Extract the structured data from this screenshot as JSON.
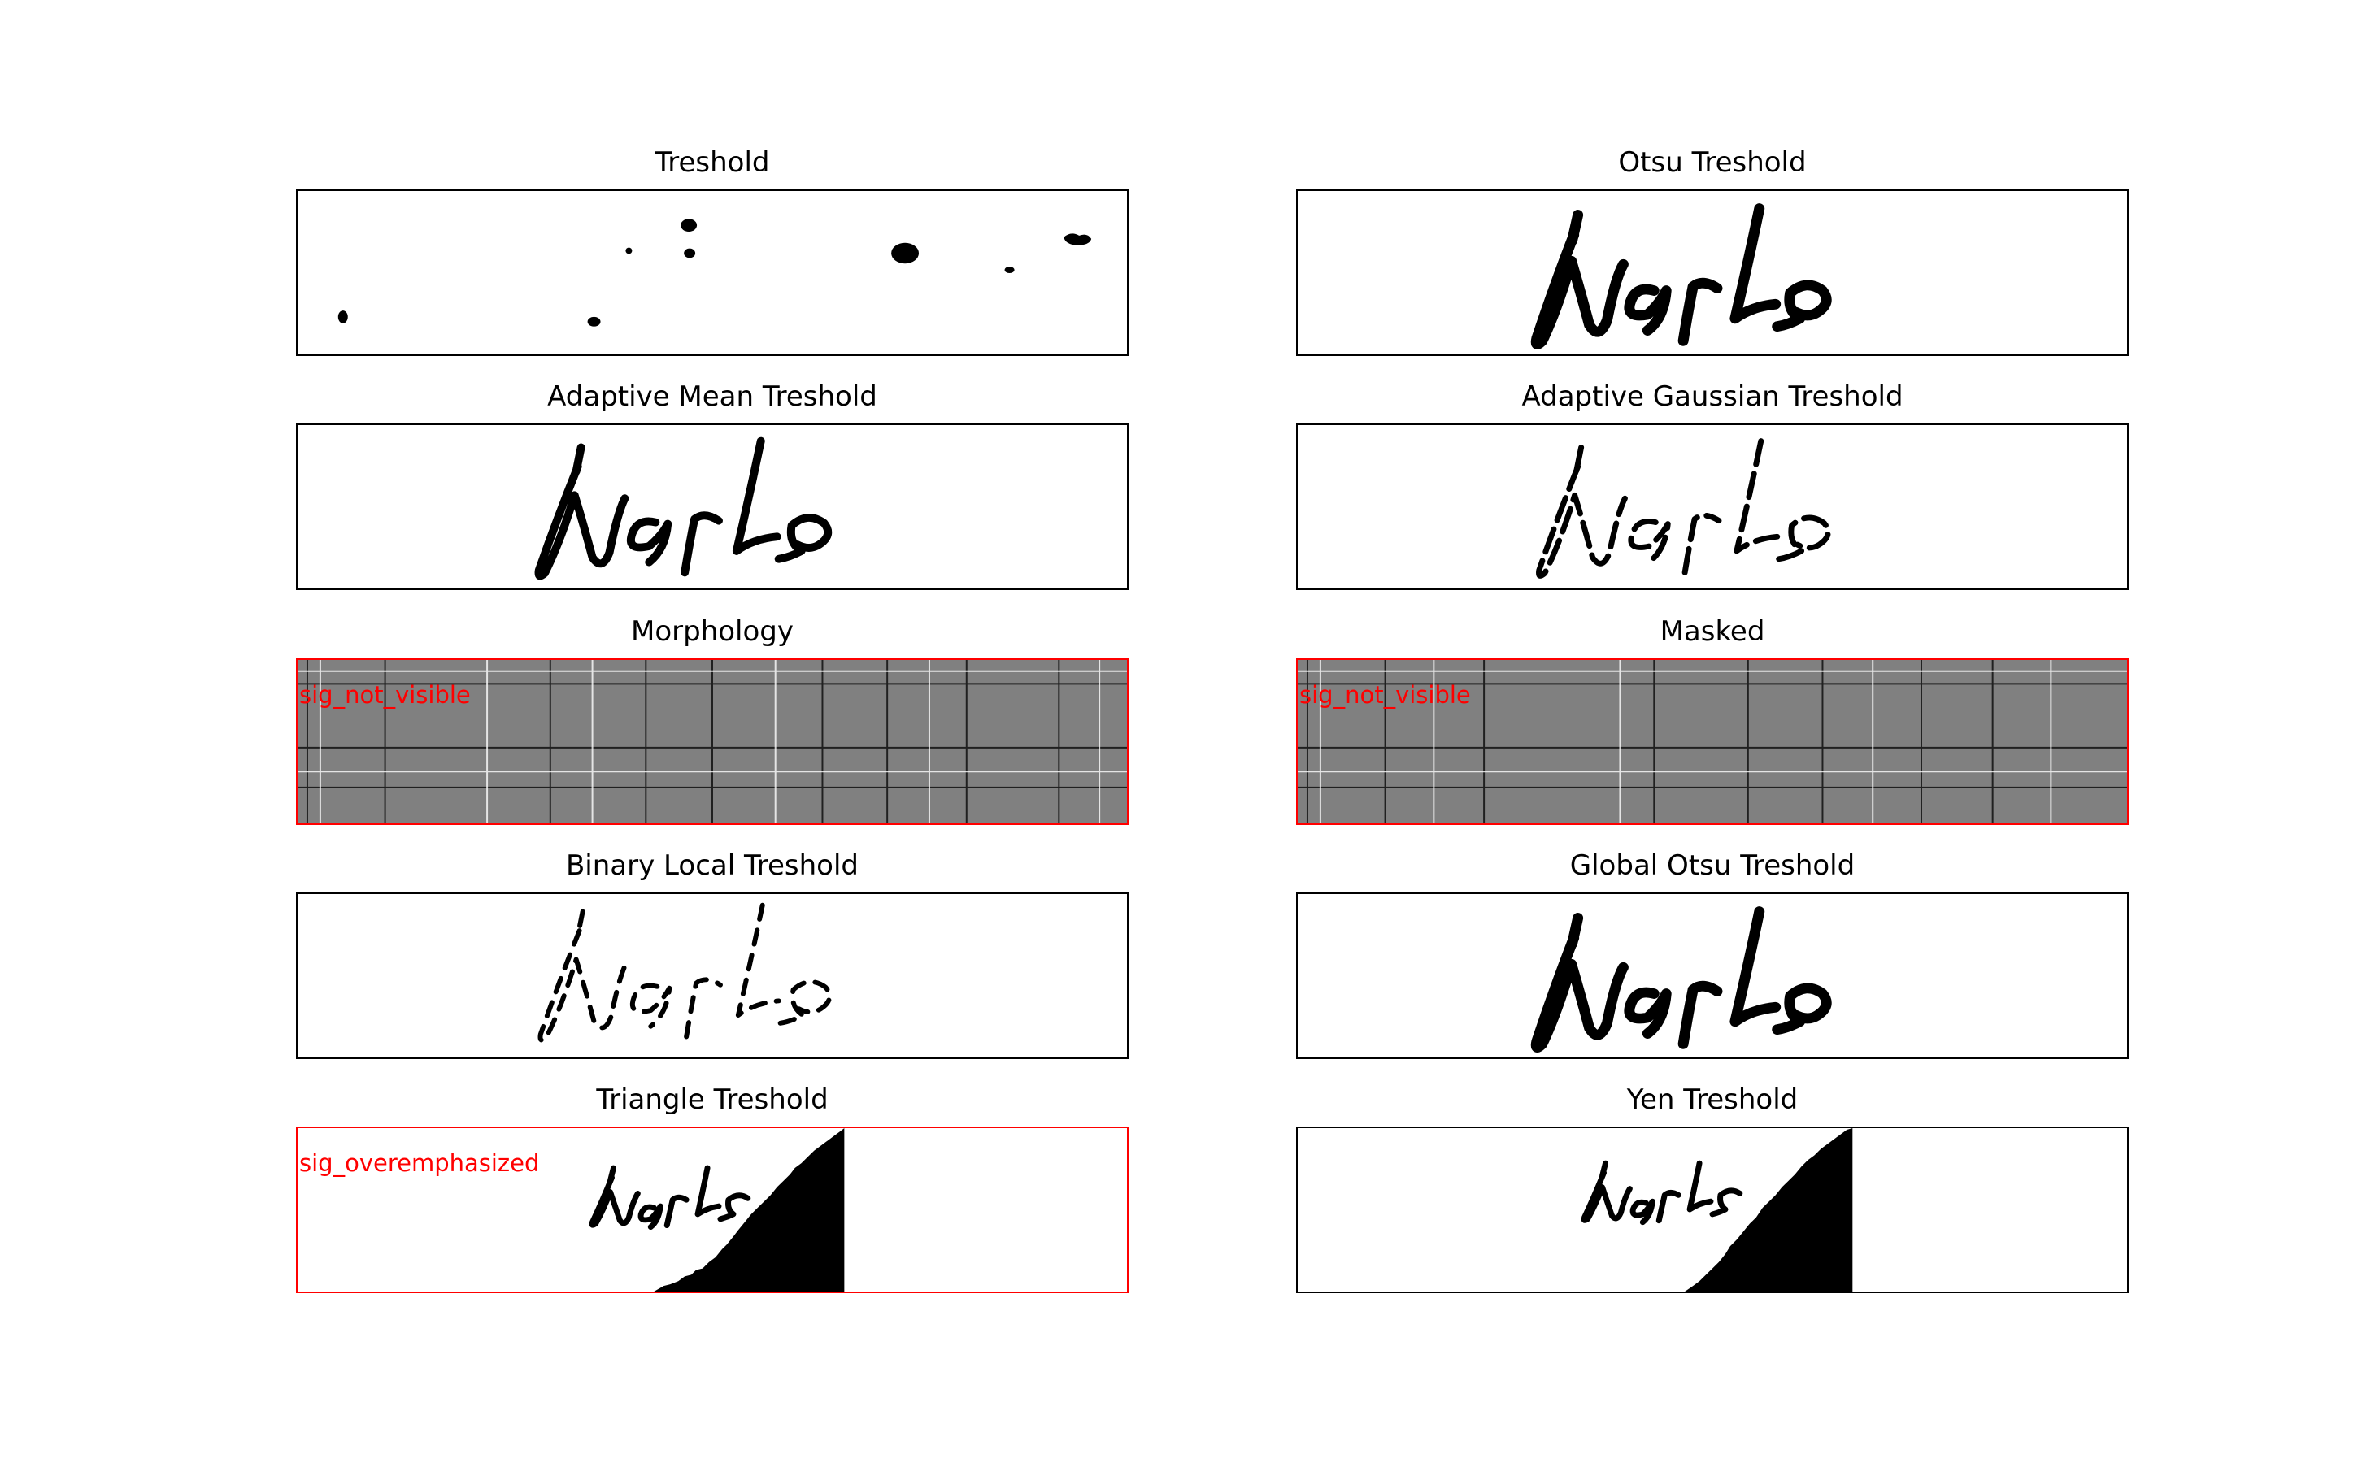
{
  "figure": {
    "panels": [
      {
        "id": "treshold",
        "title": "Treshold",
        "flag": ""
      },
      {
        "id": "otsu",
        "title": "Otsu Treshold",
        "flag": ""
      },
      {
        "id": "adaptive-mean",
        "title": "Adaptive Mean Treshold",
        "flag": ""
      },
      {
        "id": "adaptive-gaussian",
        "title": "Adaptive Gaussian Treshold",
        "flag": ""
      },
      {
        "id": "morphology",
        "title": "Morphology",
        "flag": "sig_not_visible"
      },
      {
        "id": "masked",
        "title": "Masked",
        "flag": "sig_not_visible"
      },
      {
        "id": "binary-local",
        "title": "Binary Local Treshold",
        "flag": ""
      },
      {
        "id": "global-otsu",
        "title": "Global Otsu Treshold",
        "flag": ""
      },
      {
        "id": "triangle",
        "title": "Triangle Treshold",
        "flag": "sig_overemphasized"
      },
      {
        "id": "yen",
        "title": "Yen Treshold",
        "flag": ""
      }
    ],
    "colors": {
      "flag": "#ff0000",
      "frame": "#000000",
      "noise_background": "#808080",
      "ink": "#000000"
    }
  }
}
